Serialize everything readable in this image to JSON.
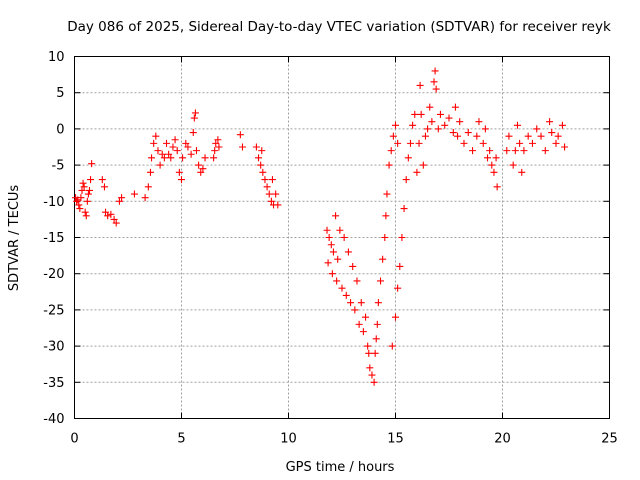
{
  "chart_data": {
    "type": "scatter",
    "title": "Day 086 of 2025, Sidereal Day-to-day VTEC variation (SDTVAR) for receiver reyk",
    "xlabel": "GPS time / hours",
    "ylabel": "SDTVAR / TECUs",
    "xlim": [
      0,
      25
    ],
    "ylim": [
      -40,
      10
    ],
    "xticks": [
      0,
      5,
      10,
      15,
      20,
      25
    ],
    "yticks": [
      10,
      5,
      0,
      -5,
      -10,
      -15,
      -20,
      -25,
      -30,
      -35,
      -40
    ],
    "grid": true,
    "marker": "+",
    "color": "#ff0000",
    "series": [
      {
        "name": "SDTVAR",
        "points": [
          [
            0.05,
            -9.5
          ],
          [
            0.1,
            -10
          ],
          [
            0.15,
            -9.8
          ],
          [
            0.2,
            -10.5
          ],
          [
            0.25,
            -11
          ],
          [
            0.3,
            -9.5
          ],
          [
            0.35,
            -8.5
          ],
          [
            0.4,
            -7.5
          ],
          [
            0.45,
            -8
          ],
          [
            0.5,
            -11.5
          ],
          [
            0.55,
            -12
          ],
          [
            0.6,
            -10
          ],
          [
            0.65,
            -9
          ],
          [
            0.7,
            -8.5
          ],
          [
            0.75,
            -7
          ],
          [
            0.8,
            -4.8
          ],
          [
            1.3,
            -7
          ],
          [
            1.4,
            -8
          ],
          [
            1.45,
            -11.5
          ],
          [
            1.55,
            -12
          ],
          [
            1.7,
            -11.8
          ],
          [
            1.85,
            -12.5
          ],
          [
            1.95,
            -13
          ],
          [
            2.1,
            -10
          ],
          [
            2.2,
            -9.5
          ],
          [
            2.8,
            -9
          ],
          [
            3.3,
            -9.5
          ],
          [
            3.45,
            -8
          ],
          [
            3.55,
            -6
          ],
          [
            3.6,
            -4
          ],
          [
            3.7,
            -2
          ],
          [
            3.8,
            -1
          ],
          [
            3.9,
            -3
          ],
          [
            4.0,
            -5
          ],
          [
            4.1,
            -3.5
          ],
          [
            4.2,
            -4
          ],
          [
            4.3,
            -2
          ],
          [
            4.4,
            -3.5
          ],
          [
            4.5,
            -4
          ],
          [
            4.6,
            -2.5
          ],
          [
            4.7,
            -1.5
          ],
          [
            4.8,
            -3
          ],
          [
            4.9,
            -6
          ],
          [
            5.0,
            -7
          ],
          [
            5.05,
            -4
          ],
          [
            5.2,
            -2
          ],
          [
            5.3,
            -2.5
          ],
          [
            5.45,
            -3.5
          ],
          [
            5.55,
            -0.5
          ],
          [
            5.6,
            1.5
          ],
          [
            5.65,
            2.2
          ],
          [
            5.7,
            -3
          ],
          [
            5.8,
            -5
          ],
          [
            5.9,
            -6
          ],
          [
            6.0,
            -5.5
          ],
          [
            6.1,
            -4
          ],
          [
            6.5,
            -4
          ],
          [
            6.55,
            -3
          ],
          [
            6.6,
            -2
          ],
          [
            6.7,
            -1.5
          ],
          [
            6.75,
            -2.5
          ],
          [
            7.75,
            -0.8
          ],
          [
            7.85,
            -2.5
          ],
          [
            8.5,
            -2.5
          ],
          [
            8.6,
            -4
          ],
          [
            8.7,
            -5
          ],
          [
            8.75,
            -3
          ],
          [
            8.8,
            -6
          ],
          [
            8.9,
            -7
          ],
          [
            9.0,
            -8
          ],
          [
            9.1,
            -9
          ],
          [
            9.2,
            -10
          ],
          [
            9.25,
            -7
          ],
          [
            9.3,
            -10.5
          ],
          [
            9.4,
            -9
          ],
          [
            9.5,
            -10.5
          ],
          [
            11.8,
            -14
          ],
          [
            11.85,
            -18.5
          ],
          [
            11.9,
            -15
          ],
          [
            12.0,
            -16
          ],
          [
            12.05,
            -20
          ],
          [
            12.1,
            -17
          ],
          [
            12.2,
            -12
          ],
          [
            12.25,
            -21
          ],
          [
            12.3,
            -18
          ],
          [
            12.4,
            -14
          ],
          [
            12.5,
            -22
          ],
          [
            12.6,
            -15
          ],
          [
            12.7,
            -23
          ],
          [
            12.8,
            -17
          ],
          [
            12.9,
            -24
          ],
          [
            13.0,
            -19
          ],
          [
            13.1,
            -25
          ],
          [
            13.2,
            -21
          ],
          [
            13.3,
            -27
          ],
          [
            13.4,
            -24
          ],
          [
            13.5,
            -28
          ],
          [
            13.6,
            -26
          ],
          [
            13.7,
            -30
          ],
          [
            13.75,
            -31
          ],
          [
            13.8,
            -33
          ],
          [
            13.9,
            -34
          ],
          [
            14.0,
            -35
          ],
          [
            14.05,
            -31
          ],
          [
            14.1,
            -29
          ],
          [
            14.15,
            -27
          ],
          [
            14.2,
            -24
          ],
          [
            14.3,
            -21
          ],
          [
            14.4,
            -18
          ],
          [
            14.5,
            -15
          ],
          [
            14.55,
            -12
          ],
          [
            14.6,
            -9
          ],
          [
            14.7,
            -5
          ],
          [
            14.8,
            -3
          ],
          [
            14.9,
            -1
          ],
          [
            15.0,
            0.5
          ],
          [
            15.1,
            -2
          ],
          [
            14.85,
            -30
          ],
          [
            15.0,
            -26
          ],
          [
            15.1,
            -22
          ],
          [
            15.2,
            -19
          ],
          [
            15.3,
            -15
          ],
          [
            15.4,
            -11
          ],
          [
            15.5,
            -7
          ],
          [
            15.6,
            -4
          ],
          [
            15.7,
            -2
          ],
          [
            15.8,
            0.5
          ],
          [
            15.9,
            2
          ],
          [
            16.0,
            -6
          ],
          [
            16.1,
            -2
          ],
          [
            16.15,
            6
          ],
          [
            16.2,
            2
          ],
          [
            16.3,
            -5
          ],
          [
            16.4,
            -1
          ],
          [
            16.5,
            0
          ],
          [
            16.6,
            3
          ],
          [
            16.7,
            1
          ],
          [
            16.8,
            6.5
          ],
          [
            16.85,
            8
          ],
          [
            16.9,
            5.5
          ],
          [
            17.0,
            0
          ],
          [
            17.1,
            2
          ],
          [
            17.3,
            0.5
          ],
          [
            17.5,
            1.5
          ],
          [
            17.7,
            -0.5
          ],
          [
            17.8,
            3
          ],
          [
            17.9,
            -1
          ],
          [
            18.0,
            1
          ],
          [
            18.2,
            -2
          ],
          [
            18.4,
            -0.5
          ],
          [
            18.6,
            -3
          ],
          [
            18.8,
            -1
          ],
          [
            18.9,
            1
          ],
          [
            19.1,
            -2
          ],
          [
            19.2,
            0
          ],
          [
            19.3,
            -4
          ],
          [
            19.4,
            -3
          ],
          [
            19.5,
            -5
          ],
          [
            19.6,
            -6
          ],
          [
            19.7,
            -4
          ],
          [
            19.75,
            -8
          ],
          [
            20.2,
            -3
          ],
          [
            20.3,
            -1
          ],
          [
            20.5,
            -5
          ],
          [
            20.6,
            -3
          ],
          [
            20.7,
            0.5
          ],
          [
            20.8,
            -2
          ],
          [
            20.9,
            -6
          ],
          [
            21.0,
            -3
          ],
          [
            21.2,
            -1
          ],
          [
            21.4,
            -2
          ],
          [
            21.6,
            0
          ],
          [
            21.8,
            -1
          ],
          [
            22.0,
            -3
          ],
          [
            22.2,
            1
          ],
          [
            22.3,
            -0.5
          ],
          [
            22.5,
            -2
          ],
          [
            22.6,
            -1
          ],
          [
            22.8,
            0.5
          ],
          [
            22.9,
            -2.5
          ]
        ]
      }
    ]
  }
}
